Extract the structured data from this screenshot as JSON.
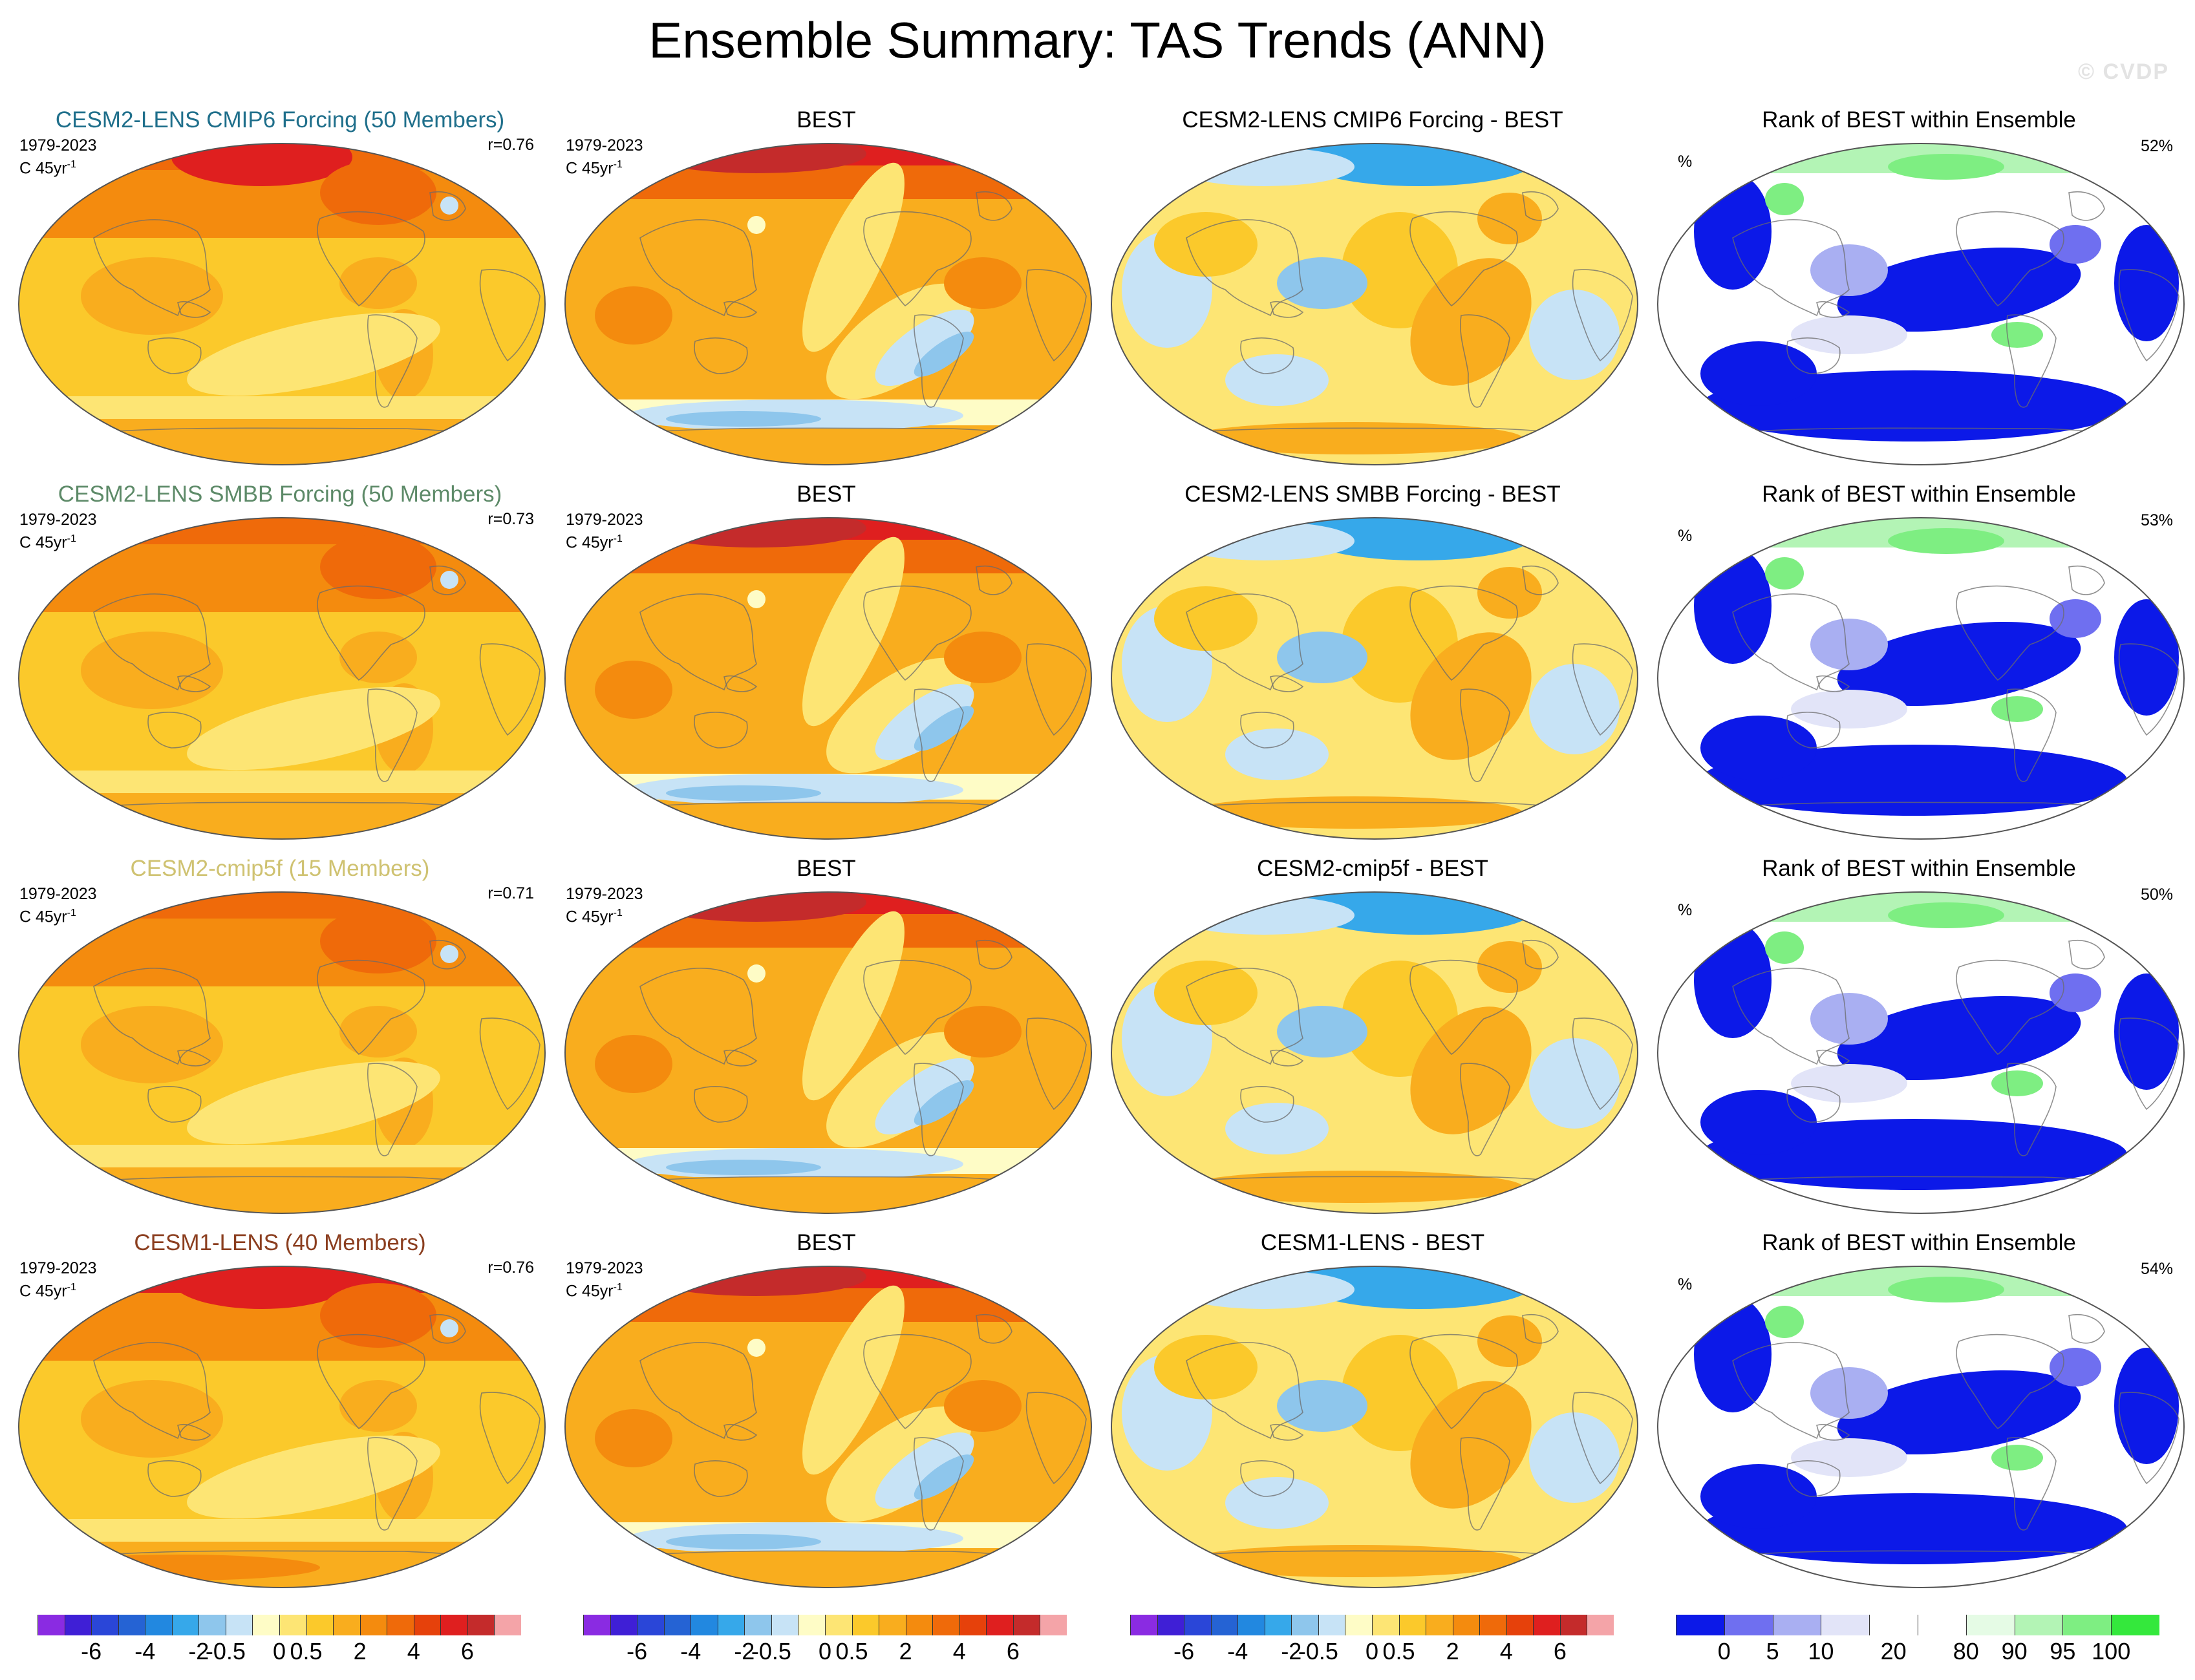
{
  "page": {
    "title": "Ensemble Summary: TAS Trends (ANN)",
    "watermark": "© CVDP"
  },
  "colors": {
    "diverging": [
      "#8a2be2",
      "#3f1fd6",
      "#2a46d8",
      "#2563d4",
      "#2288e0",
      "#36a8ea",
      "#8ec6ec",
      "#c7e3f6",
      "#fefcc6",
      "#fde574",
      "#fbc92b",
      "#f9ad1e",
      "#f48b0e",
      "#ef6a0a",
      "#e6410b",
      "#df1f1f",
      "#c42b2b",
      "#f4a4a8"
    ],
    "rank": [
      "#0c19e8",
      "#6f6ff0",
      "#a9aff2",
      "#e2e4f8",
      "#ffffff",
      "#ffffff",
      "#e5fbe5",
      "#b3f4b5",
      "#7eee82",
      "#34e83c"
    ],
    "ensemble_title_colors": [
      "#1f6f8b",
      "#5d8a68",
      "#cfc271",
      "#8b3e1f"
    ]
  },
  "rows": [
    {
      "ensemble": {
        "title": "CESM2-LENS CMIP6 Forcing (50 Members)",
        "period": "1979-2023",
        "units": "C 45yr",
        "units_exp": "-1",
        "r": "r=0.76",
        "style": "warmest"
      },
      "best": {
        "title": "BEST",
        "period": "1979-2023",
        "units": "C 45yr",
        "units_exp": "-1"
      },
      "diff": {
        "title": "CESM2-LENS CMIP6 Forcing - BEST"
      },
      "rank": {
        "title": "Rank of BEST within Ensemble",
        "symbol": "%",
        "value": "52%"
      }
    },
    {
      "ensemble": {
        "title": "CESM2-LENS SMBB Forcing (50 Members)",
        "period": "1979-2023",
        "units": "C 45yr",
        "units_exp": "-1",
        "r": "r=0.73",
        "style": "warm"
      },
      "best": {
        "title": "BEST",
        "period": "1979-2023",
        "units": "C 45yr",
        "units_exp": "-1"
      },
      "diff": {
        "title": "CESM2-LENS SMBB Forcing - BEST"
      },
      "rank": {
        "title": "Rank of BEST within Ensemble",
        "symbol": "%",
        "value": "53%"
      }
    },
    {
      "ensemble": {
        "title": "CESM2-cmip5f (15 Members)",
        "period": "1979-2023",
        "units": "C 45yr",
        "units_exp": "-1",
        "r": "r=0.71",
        "style": "warm"
      },
      "best": {
        "title": "BEST",
        "period": "1979-2023",
        "units": "C 45yr",
        "units_exp": "-1"
      },
      "diff": {
        "title": "CESM2-cmip5f - BEST"
      },
      "rank": {
        "title": "Rank of BEST within Ensemble",
        "symbol": "%",
        "value": "50%"
      }
    },
    {
      "ensemble": {
        "title": "CESM1-LENS (40 Members)",
        "period": "1979-2023",
        "units": "C 45yr",
        "units_exp": "-1",
        "r": "r=0.76",
        "style": "hot"
      },
      "best": {
        "title": "BEST",
        "period": "1979-2023",
        "units": "C 45yr",
        "units_exp": "-1"
      },
      "diff": {
        "title": "CESM1-LENS - BEST"
      },
      "rank": {
        "title": "Rank of BEST within Ensemble",
        "symbol": "%",
        "value": "54%"
      }
    }
  ],
  "colorbars": [
    {
      "name": "colorbar-ensemble",
      "palette": "diverging",
      "labels": [
        "-6",
        "-4",
        "-2",
        "-0.5",
        "0",
        "0.5",
        "2",
        "4",
        "6"
      ]
    },
    {
      "name": "colorbar-best",
      "palette": "diverging",
      "labels": [
        "-6",
        "-4",
        "-2",
        "-0.5",
        "0",
        "0.5",
        "2",
        "4",
        "6"
      ]
    },
    {
      "name": "colorbar-diff",
      "palette": "diverging",
      "labels": [
        "-6",
        "-4",
        "-2",
        "-0.5",
        "0",
        "0.5",
        "2",
        "4",
        "6"
      ]
    },
    {
      "name": "colorbar-rank",
      "palette": "rank",
      "labels": [
        "0",
        "5",
        "10",
        "20",
        "80",
        "90",
        "95",
        "100"
      ]
    }
  ],
  "chart_data": {
    "type": "heatmap",
    "title": "Ensemble Summary: TAS Trends (ANN)",
    "variable": "TAS trend",
    "period": "1979-2023",
    "units": "C 45yr-1",
    "projection": "global map",
    "trend_contour_levels": [
      -6,
      -5,
      -4,
      -3,
      -2,
      -1,
      -0.5,
      -0.25,
      0,
      0.25,
      0.5,
      1,
      2,
      3,
      4,
      5,
      6
    ],
    "trend_tick_labels": [
      "-6",
      "-4",
      "-2",
      "-0.5",
      "0",
      "0.5",
      "2",
      "4",
      "6"
    ],
    "rank_levels": [
      0,
      5,
      10,
      20,
      80,
      90,
      95,
      100
    ],
    "rank_tick_labels": [
      "0",
      "5",
      "10",
      "20",
      "80",
      "90",
      "95",
      "100"
    ],
    "columns": [
      "Ensemble mean",
      "BEST",
      "Ensemble - BEST",
      "Rank of BEST within Ensemble"
    ],
    "panels": [
      {
        "ensemble": "CESM2-LENS CMIP6 Forcing (50 Members)",
        "members": 50,
        "pattern_correlation": 0.76,
        "rank_pct": 52
      },
      {
        "ensemble": "CESM2-LENS SMBB Forcing (50 Members)",
        "members": 50,
        "pattern_correlation": 0.73,
        "rank_pct": 53
      },
      {
        "ensemble": "CESM2-cmip5f (15 Members)",
        "members": 15,
        "pattern_correlation": 0.71,
        "rank_pct": 50
      },
      {
        "ensemble": "CESM1-LENS (40 Members)",
        "members": 40,
        "pattern_correlation": 0.76,
        "rank_pct": 54
      }
    ]
  }
}
